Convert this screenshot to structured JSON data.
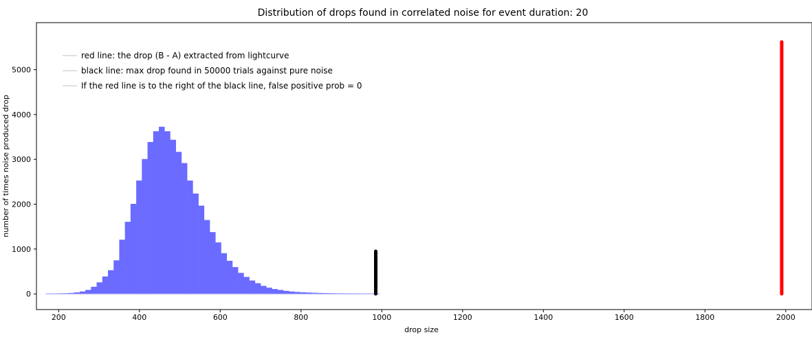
{
  "chart_data": {
    "type": "bar",
    "title": "Distribution of drops found in correlated noise for event duration: 20",
    "xlabel": "drop size",
    "ylabel": "number of times noise produced drop",
    "xlim": [
      145,
      2065
    ],
    "ylim": [
      -350,
      6050
    ],
    "xticks": [
      200,
      400,
      600,
      800,
      1000,
      1200,
      1400,
      1600,
      1800,
      2000
    ],
    "yticks": [
      0,
      1000,
      2000,
      3000,
      4000,
      5000
    ],
    "grid": false,
    "legend_position": "top-left",
    "legend": [
      "red line: the drop (B - A) extracted from lightcurve",
      "black line: max drop found in 50000 trials against pure noise",
      "If the red line is to the right of the black line, false positive prob = 0"
    ],
    "histogram": {
      "color": "#6b6bff",
      "bin_width": 14,
      "bin_starts": [
        168,
        182,
        196,
        210,
        224,
        238,
        252,
        266,
        280,
        294,
        308,
        322,
        336,
        350,
        364,
        378,
        392,
        406,
        420,
        434,
        448,
        462,
        476,
        490,
        504,
        518,
        532,
        546,
        560,
        574,
        588,
        602,
        616,
        630,
        644,
        658,
        672,
        686,
        700,
        714,
        728,
        742,
        756,
        770,
        784,
        798,
        812,
        826,
        840,
        854,
        868,
        882,
        896,
        910,
        924,
        938,
        952,
        966,
        980
      ],
      "counts": [
        0,
        2,
        4,
        6,
        12,
        25,
        45,
        80,
        150,
        250,
        380,
        520,
        740,
        1200,
        1600,
        2000,
        2520,
        3000,
        3380,
        3620,
        3720,
        3620,
        3430,
        3160,
        2910,
        2520,
        2230,
        1960,
        1640,
        1370,
        1140,
        900,
        730,
        590,
        460,
        370,
        290,
        230,
        170,
        130,
        100,
        80,
        60,
        45,
        35,
        28,
        22,
        16,
        12,
        9,
        7,
        5,
        4,
        3,
        2,
        2,
        1,
        1,
        0
      ]
    },
    "vertical_lines": [
      {
        "name": "black line",
        "x": 985,
        "y_start": 0,
        "y_end": 950,
        "color": "#000000"
      },
      {
        "name": "red line",
        "x": 1990,
        "y_start": 0,
        "y_end": 5620,
        "color": "#ff0000"
      }
    ]
  }
}
